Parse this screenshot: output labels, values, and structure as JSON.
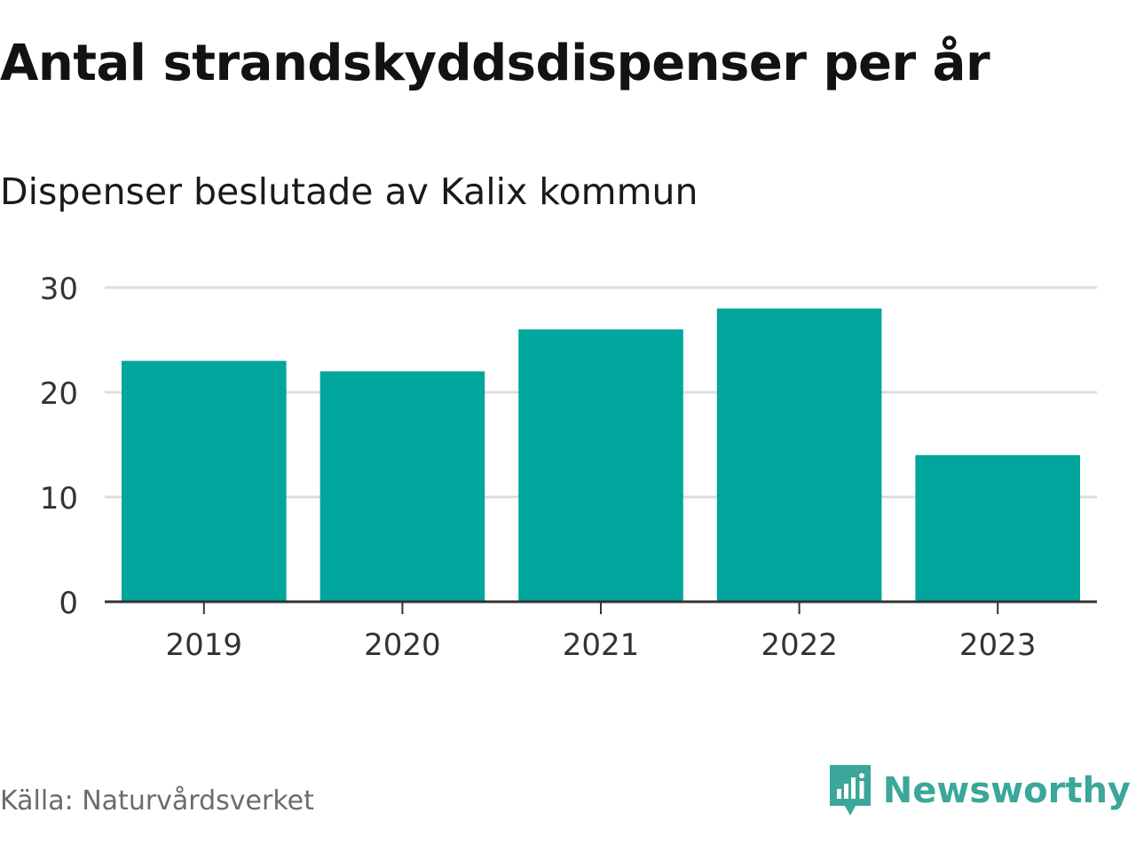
{
  "chart_data": {
    "type": "bar",
    "title": "Antal strandskyddsdispenser per år",
    "subtitle": "Dispenser beslutade av Kalix kommun",
    "categories": [
      "2019",
      "2020",
      "2021",
      "2022",
      "2023"
    ],
    "values": [
      23,
      22,
      26,
      28,
      14
    ],
    "xlabel": "",
    "ylabel": "",
    "ylim": [
      0,
      30
    ],
    "yticks": [
      0,
      10,
      20,
      30
    ],
    "grid": true,
    "bar_color": "#00a59b"
  },
  "footer": {
    "source": "Källa: Naturvårdsverket",
    "brand": "Newsworthy",
    "brand_color": "#3aa79a"
  }
}
